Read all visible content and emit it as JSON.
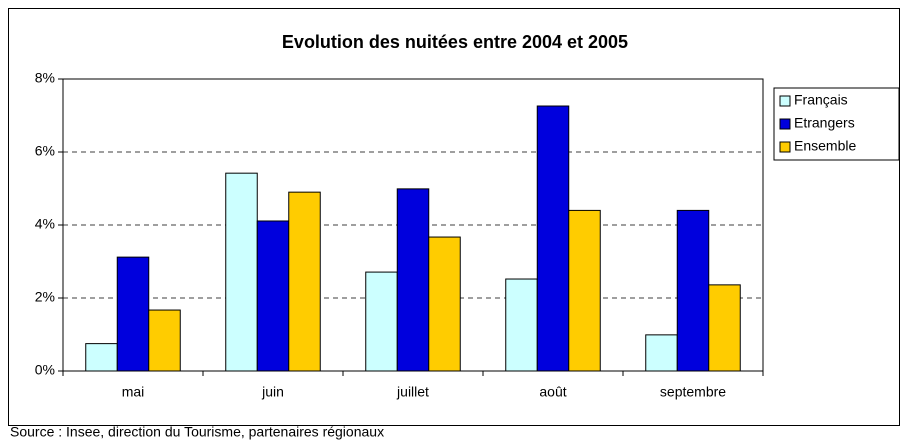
{
  "chart_data": {
    "type": "bar",
    "title": "Evolution des nuitées entre 2004 et 2005",
    "source": "Source : Insee, direction du Tourisme, partenaires régionaux",
    "categories": [
      "mai",
      "juin",
      "juillet",
      "août",
      "septembre"
    ],
    "series": [
      {
        "name": "Français",
        "color": "#ccffff",
        "values": [
          0.75,
          5.42,
          2.71,
          2.52,
          0.99
        ]
      },
      {
        "name": "Etrangers",
        "color": "#0000dd",
        "values": [
          3.12,
          4.11,
          4.99,
          7.26,
          4.4
        ]
      },
      {
        "name": "Ensemble",
        "color": "#ffcc00",
        "values": [
          1.67,
          4.9,
          3.67,
          4.4,
          2.36
        ]
      }
    ],
    "ylim": [
      0,
      8
    ],
    "yticks": [
      {
        "value": 0,
        "label": "0%"
      },
      {
        "value": 2,
        "label": "2%"
      },
      {
        "value": 4,
        "label": "4%"
      },
      {
        "value": 6,
        "label": "6%"
      },
      {
        "value": 8,
        "label": "8%"
      }
    ],
    "grid": true,
    "legend": "right"
  }
}
